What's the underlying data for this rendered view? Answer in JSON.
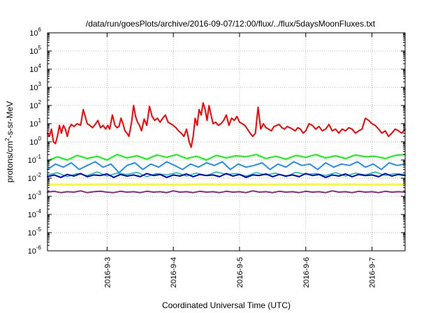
{
  "chart_data": {
    "type": "line",
    "title": "/data/run/goesPlots/archive/2016-09-07/12:00/flux/../flux/5daysMoonFluxes.txt",
    "xlabel": "Coordinated Universal Time (UTC)",
    "ylabel_base": "protons/cm",
    "ylabel_sup": "2",
    "ylabel_rest": "-s-sr-MeV",
    "y_scale": "log",
    "ylim_exp": [
      -6,
      6
    ],
    "xlim_day": [
      2.1,
      7.5
    ],
    "x_ticks": [
      {
        "day": 3,
        "label": "2016-9-3"
      },
      {
        "day": 4,
        "label": "2016-9-4"
      },
      {
        "day": 5,
        "label": "2016-9-5"
      },
      {
        "day": 6,
        "label": "2016-9-6"
      },
      {
        "day": 7,
        "label": "2016-9-7"
      }
    ],
    "y_ticks": [
      {
        "exp": 6,
        "sup": "6"
      },
      {
        "exp": 5,
        "sup": "5"
      },
      {
        "exp": 4,
        "sup": "4"
      },
      {
        "exp": 3,
        "sup": "3"
      },
      {
        "exp": 2,
        "sup": "2"
      },
      {
        "exp": 1,
        "sup": "1"
      },
      {
        "exp": 0,
        "sup": "0"
      },
      {
        "exp": -1,
        "sup": "-1"
      },
      {
        "exp": -2,
        "sup": "-2"
      },
      {
        "exp": -3,
        "sup": "-3"
      },
      {
        "exp": -4,
        "sup": "-4"
      },
      {
        "exp": -5,
        "sup": "-5"
      },
      {
        "exp": -6,
        "sup": "-6"
      }
    ],
    "y_tick_base": "10",
    "grid": true,
    "series": [
      {
        "color": "#ff0000",
        "width": 2,
        "day": [
          2.1,
          2.13,
          2.16,
          2.19,
          2.22,
          2.25,
          2.28,
          2.31,
          2.34,
          2.37,
          2.4,
          2.43,
          2.46,
          2.5,
          2.55,
          2.6,
          2.64,
          2.67,
          2.7,
          2.74,
          2.78,
          2.82,
          2.86,
          2.9,
          2.94,
          2.98,
          3.01,
          3.04,
          3.08,
          3.12,
          3.15,
          3.18,
          3.21,
          3.24,
          3.27,
          3.3,
          3.33,
          3.37,
          3.4,
          3.43,
          3.46,
          3.49,
          3.52,
          3.56,
          3.6,
          3.64,
          3.68,
          3.72,
          3.76,
          3.8,
          3.84,
          3.88,
          3.92,
          3.96,
          4.0,
          4.04,
          4.08,
          4.12,
          4.16,
          4.2,
          4.24,
          4.27,
          4.3,
          4.33,
          4.36,
          4.39,
          4.42,
          4.45,
          4.48,
          4.51,
          4.54,
          4.57,
          4.6,
          4.64,
          4.68,
          4.72,
          4.76,
          4.8,
          4.84,
          4.88,
          4.92,
          4.96,
          5.0,
          5.04,
          5.08,
          5.12,
          5.16,
          5.2,
          5.24,
          5.28,
          5.32,
          5.36,
          5.4,
          5.44,
          5.48,
          5.52,
          5.56,
          5.6,
          5.64,
          5.68,
          5.72,
          5.76,
          5.8,
          5.84,
          5.88,
          5.92,
          5.96,
          6.0,
          6.05,
          6.1,
          6.15,
          6.2,
          6.25,
          6.3,
          6.35,
          6.4,
          6.45,
          6.5,
          6.55,
          6.6,
          6.65,
          6.7,
          6.75,
          6.8,
          6.85,
          6.9,
          6.95,
          7.0,
          7.05,
          7.1,
          7.15,
          7.2,
          7.25,
          7.3,
          7.35,
          7.4,
          7.45,
          7.5
        ],
        "value": [
          3,
          2,
          5,
          1,
          0.8,
          2,
          8,
          3,
          8,
          5,
          2,
          6,
          9,
          7,
          10,
          8,
          60,
          25,
          10,
          8,
          6,
          9,
          15,
          6,
          8,
          5,
          8,
          5,
          30,
          8,
          6,
          7,
          20,
          10,
          4,
          3,
          2,
          12,
          100,
          25,
          12,
          8,
          4,
          18,
          8,
          90,
          25,
          15,
          20,
          12,
          20,
          30,
          12,
          10,
          8,
          6,
          4,
          3,
          2,
          5,
          1,
          0.5,
          2,
          20,
          8,
          60,
          30,
          140,
          60,
          15,
          100,
          30,
          10,
          12,
          8,
          10,
          15,
          30,
          8,
          20,
          15,
          25,
          12,
          10,
          8,
          5,
          3,
          2,
          3,
          80,
          5,
          10,
          6,
          5,
          4,
          7,
          8,
          9,
          6,
          5,
          7,
          6,
          5,
          4,
          6,
          5,
          3,
          4,
          10,
          8,
          5,
          7,
          4,
          5,
          9,
          4,
          5,
          3,
          5,
          4,
          6,
          5,
          3,
          4,
          5,
          20,
          15,
          10,
          8,
          5,
          3,
          4,
          2,
          3,
          5,
          4,
          3,
          5,
          8
        ]
      },
      {
        "color": "#00ff00",
        "width": 2,
        "day": [
          2.1,
          2.25,
          2.4,
          2.55,
          2.7,
          2.85,
          3.0,
          3.15,
          3.3,
          3.45,
          3.6,
          3.75,
          3.9,
          4.05,
          4.2,
          4.35,
          4.5,
          4.65,
          4.8,
          4.95,
          5.1,
          5.25,
          5.4,
          5.55,
          5.7,
          5.85,
          6.0,
          6.15,
          6.3,
          6.45,
          6.6,
          6.75,
          6.9,
          7.05,
          7.2,
          7.35,
          7.5
        ],
        "value": [
          0.09,
          0.15,
          0.1,
          0.18,
          0.12,
          0.16,
          0.1,
          0.2,
          0.13,
          0.17,
          0.11,
          0.19,
          0.14,
          0.2,
          0.12,
          0.16,
          0.1,
          0.18,
          0.13,
          0.17,
          0.15,
          0.2,
          0.12,
          0.16,
          0.11,
          0.18,
          0.14,
          0.2,
          0.13,
          0.17,
          0.12,
          0.19,
          0.15,
          0.16,
          0.12,
          0.18,
          0.2
        ]
      },
      {
        "color": "#1e90ff",
        "width": 2,
        "day": [
          2.1,
          2.22,
          2.34,
          2.46,
          2.58,
          2.7,
          2.82,
          2.94,
          3.06,
          3.18,
          3.3,
          3.42,
          3.54,
          3.66,
          3.78,
          3.9,
          4.02,
          4.14,
          4.26,
          4.38,
          4.5,
          4.62,
          4.74,
          4.86,
          4.98,
          5.1,
          5.22,
          5.34,
          5.46,
          5.58,
          5.7,
          5.82,
          5.94,
          6.06,
          6.18,
          6.3,
          6.42,
          6.54,
          6.66,
          6.78,
          6.9,
          7.02,
          7.14,
          7.26,
          7.38,
          7.5
        ],
        "value": [
          0.03,
          0.06,
          0.04,
          0.07,
          0.03,
          0.05,
          0.08,
          0.04,
          0.06,
          0.02,
          0.05,
          0.07,
          0.03,
          0.06,
          0.04,
          0.08,
          0.05,
          0.03,
          0.06,
          0.04,
          0.07,
          0.05,
          0.08,
          0.03,
          0.06,
          0.04,
          0.05,
          0.07,
          0.03,
          0.06,
          0.04,
          0.08,
          0.05,
          0.06,
          0.03,
          0.07,
          0.04,
          0.06,
          0.05,
          0.08,
          0.04,
          0.06,
          0.03,
          0.07,
          0.05,
          0.06
        ]
      },
      {
        "color": "#00c0a0",
        "width": 1.5,
        "day": [
          2.1,
          2.25,
          2.4,
          2.55,
          2.7,
          2.85,
          3.0,
          3.15,
          3.3,
          3.45,
          3.6,
          3.75,
          3.9,
          4.05,
          4.2,
          4.35,
          4.5,
          4.65,
          4.8,
          4.95,
          5.1,
          5.25,
          5.4,
          5.55,
          5.7,
          5.85,
          6.0,
          6.15,
          6.3,
          6.45,
          6.6,
          6.75,
          6.9,
          7.05,
          7.2,
          7.35,
          7.5
        ],
        "value": [
          0.015,
          0.02,
          0.012,
          0.018,
          0.014,
          0.022,
          0.013,
          0.019,
          0.016,
          0.021,
          0.012,
          0.018,
          0.015,
          0.02,
          0.013,
          0.019,
          0.014,
          0.022,
          0.016,
          0.018,
          0.013,
          0.02,
          0.015,
          0.019,
          0.012,
          0.021,
          0.016,
          0.018,
          0.014,
          0.02,
          0.013,
          0.019,
          0.015,
          0.022,
          0.014,
          0.018,
          0.016
        ]
      },
      {
        "color": "#0000cd",
        "width": 2,
        "day": [
          2.1,
          2.2,
          2.3,
          2.4,
          2.5,
          2.6,
          2.7,
          2.8,
          2.9,
          3.0,
          3.1,
          3.2,
          3.3,
          3.4,
          3.5,
          3.6,
          3.7,
          3.8,
          3.9,
          4.0,
          4.1,
          4.2,
          4.3,
          4.4,
          4.5,
          4.6,
          4.7,
          4.8,
          4.9,
          5.0,
          5.1,
          5.2,
          5.3,
          5.4,
          5.5,
          5.6,
          5.7,
          5.8,
          5.9,
          6.0,
          6.1,
          6.2,
          6.3,
          6.4,
          6.5,
          6.6,
          6.7,
          6.8,
          6.9,
          7.0,
          7.1,
          7.2,
          7.3,
          7.4,
          7.5
        ],
        "value": [
          0.012,
          0.015,
          0.011,
          0.016,
          0.013,
          0.018,
          0.012,
          0.015,
          0.014,
          0.017,
          0.011,
          0.016,
          0.013,
          0.015,
          0.012,
          0.018,
          0.014,
          0.016,
          0.011,
          0.015,
          0.013,
          0.017,
          0.012,
          0.016,
          0.014,
          0.015,
          0.012,
          0.018,
          0.013,
          0.016,
          0.011,
          0.015,
          0.014,
          0.017,
          0.012,
          0.016,
          0.013,
          0.015,
          0.012,
          0.018,
          0.014,
          0.016,
          0.011,
          0.015,
          0.013,
          0.017,
          0.012,
          0.016,
          0.014,
          0.015,
          0.012,
          0.018,
          0.013,
          0.016,
          0.014
        ]
      },
      {
        "color": "#ffff00",
        "width": 2.5,
        "day": [
          2.1,
          2.5,
          3.0,
          3.5,
          4.0,
          4.5,
          5.0,
          5.5,
          6.0,
          6.5,
          7.0,
          7.5
        ],
        "value": [
          0.0045,
          0.0044,
          0.0046,
          0.0045,
          0.0044,
          0.0046,
          0.0045,
          0.0044,
          0.0046,
          0.0045,
          0.0044,
          0.0045
        ]
      },
      {
        "color": "#8b2a7a",
        "width": 2,
        "day": [
          2.1,
          2.2,
          2.3,
          2.4,
          2.5,
          2.6,
          2.7,
          2.8,
          2.9,
          3.0,
          3.1,
          3.2,
          3.3,
          3.4,
          3.5,
          3.6,
          3.7,
          3.8,
          3.9,
          4.0,
          4.1,
          4.2,
          4.3,
          4.4,
          4.5,
          4.6,
          4.7,
          4.8,
          4.9,
          5.0,
          5.1,
          5.2,
          5.3,
          5.4,
          5.5,
          5.6,
          5.7,
          5.8,
          5.9,
          6.0,
          6.1,
          6.2,
          6.3,
          6.4,
          6.5,
          6.6,
          6.7,
          6.8,
          6.9,
          7.0,
          7.1,
          7.2,
          7.3,
          7.4,
          7.5
        ],
        "value": [
          0.0017,
          0.0019,
          0.0016,
          0.0018,
          0.0017,
          0.002,
          0.0016,
          0.0018,
          0.0019,
          0.0017,
          0.0016,
          0.0019,
          0.0017,
          0.0018,
          0.0016,
          0.0019,
          0.0017,
          0.0018,
          0.0016,
          0.002,
          0.0017,
          0.0018,
          0.0016,
          0.0019,
          0.0017,
          0.0018,
          0.0016,
          0.0019,
          0.0017,
          0.0018,
          0.0016,
          0.002,
          0.0017,
          0.0018,
          0.0016,
          0.0019,
          0.0017,
          0.0018,
          0.0016,
          0.0019,
          0.0017,
          0.0018,
          0.0016,
          0.002,
          0.0017,
          0.0018,
          0.0016,
          0.0019,
          0.0017,
          0.0018,
          0.0016,
          0.0019,
          0.0017,
          0.0018,
          0.0017
        ]
      }
    ]
  }
}
